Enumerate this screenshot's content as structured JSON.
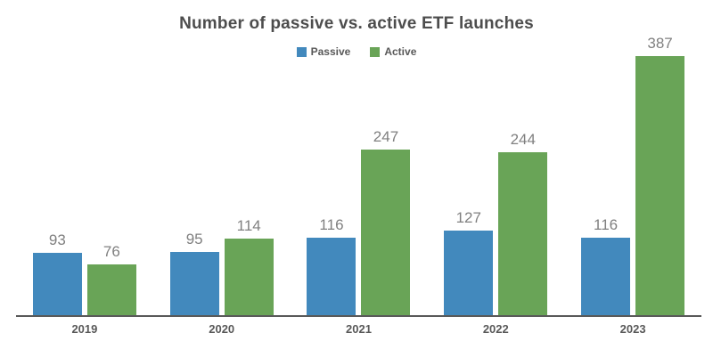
{
  "chart_data": {
    "type": "bar",
    "title": "Number of passive vs. active ETF launches",
    "categories": [
      "2019",
      "2020",
      "2021",
      "2022",
      "2023"
    ],
    "series": [
      {
        "name": "Passive",
        "color": "#4289BD",
        "values": [
          93,
          95,
          116,
          127,
          116
        ]
      },
      {
        "name": "Active",
        "color": "#69A457",
        "values": [
          76,
          114,
          247,
          244,
          387
        ]
      }
    ],
    "ylim": [
      0,
      400
    ],
    "grid": false,
    "legend_position": "top-center",
    "value_labels": "above-bars",
    "colors": {
      "title_text": "#4d4d4d",
      "value_label_text": "#808080",
      "axis_line": "#595959",
      "tick_label_text": "#595959",
      "background": "#ffffff"
    }
  }
}
